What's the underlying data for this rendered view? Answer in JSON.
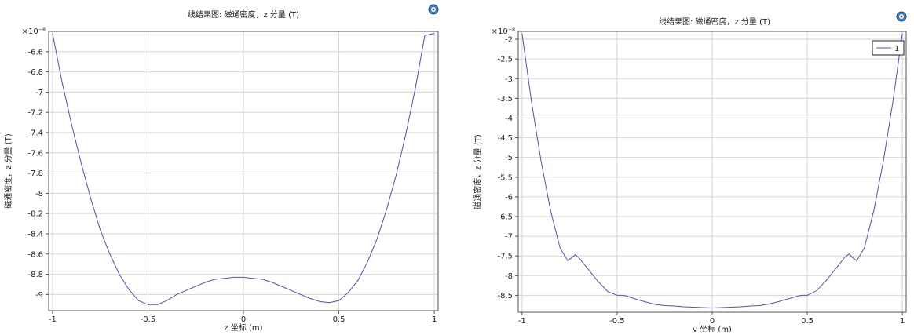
{
  "charts": [
    {
      "id": "left",
      "chart_data": {
        "type": "line",
        "title": "线结果图: 磁通密度，z 分量 (T)",
        "xlabel": "z 坐标 (m)",
        "ylabel": "磁通密度，z 分量 (T)",
        "y_multiplier": "×10⁻⁸",
        "xlim": [
          -1.02,
          1.02
        ],
        "ylim": [
          -9.16,
          -6.4
        ],
        "grid": true,
        "legend": null,
        "x_ticks": [
          -1,
          -0.5,
          0,
          0.5,
          1
        ],
        "x_tick_labels": [
          "-1",
          "-0.5",
          "0",
          "0.5",
          "1"
        ],
        "y_ticks": [
          -6.6,
          -6.8,
          -7,
          -7.2,
          -7.4,
          -7.6,
          -7.8,
          -8,
          -8.2,
          -8.4,
          -8.6,
          -8.8,
          -9
        ],
        "y_tick_labels": [
          "-6.6",
          "-6.8",
          "-7",
          "-7.2",
          "-7.4",
          "-7.6",
          "-7.8",
          "-8",
          "-8.2",
          "-8.4",
          "-8.6",
          "-8.8",
          "-9"
        ],
        "series": [
          {
            "color": "#4f52b8",
            "x": [
              -1,
              -0.95,
              -0.9,
              -0.85,
              -0.8,
              -0.75,
              -0.7,
              -0.65,
              -0.6,
              -0.55,
              -0.5,
              -0.45,
              -0.4,
              -0.35,
              -0.3,
              -0.25,
              -0.2,
              -0.15,
              -0.1,
              -0.05,
              0,
              0.05,
              0.1,
              0.15,
              0.2,
              0.25,
              0.3,
              0.35,
              0.4,
              0.45,
              0.5,
              0.55,
              0.6,
              0.65,
              0.7,
              0.75,
              0.8,
              0.85,
              0.9,
              0.95,
              1
            ],
            "y": [
              -6.42,
              -6.9,
              -7.32,
              -7.7,
              -8.05,
              -8.36,
              -8.6,
              -8.8,
              -8.95,
              -9.06,
              -9.1,
              -9.1,
              -9.06,
              -9.0,
              -8.96,
              -8.92,
              -8.88,
              -8.85,
              -8.84,
              -8.83,
              -8.83,
              -8.84,
              -8.85,
              -8.88,
              -8.92,
              -8.96,
              -9.0,
              -9.04,
              -9.07,
              -9.08,
              -9.06,
              -8.98,
              -8.86,
              -8.68,
              -8.45,
              -8.16,
              -7.82,
              -7.42,
              -6.97,
              -6.44,
              -6.42
            ]
          }
        ]
      }
    },
    {
      "id": "right",
      "chart_data": {
        "type": "line",
        "title": "线结果图: 磁通密度，z 分量 (T)",
        "xlabel": "y 坐标 (m)",
        "ylabel": "磁通密度，z 分量 (T)",
        "y_multiplier": "×10⁻⁸",
        "xlim": [
          -1.02,
          1.02
        ],
        "ylim": [
          -8.93,
          -1.8
        ],
        "grid": true,
        "legend": {
          "position": "top-right",
          "entries": [
            "1"
          ]
        },
        "x_ticks": [
          -1,
          -0.5,
          0,
          0.5,
          1
        ],
        "x_tick_labels": [
          "-1",
          "-0.5",
          "0",
          "0.5",
          "1"
        ],
        "y_ticks": [
          -2,
          -2.5,
          -3,
          -3.5,
          -4,
          -4.5,
          -5,
          -5.5,
          -6,
          -6.5,
          -7,
          -7.5,
          -8,
          -8.5
        ],
        "y_tick_labels": [
          "-2",
          "-2.5",
          "-3",
          "-3.5",
          "-4",
          "-4.5",
          "-5",
          "-5.5",
          "-6",
          "-6.5",
          "-7",
          "-7.5",
          "-8",
          "-8.5"
        ],
        "series": [
          {
            "name": "1",
            "color": "#4f52b8",
            "x": [
              -1,
              -0.95,
              -0.9,
              -0.85,
              -0.8,
              -0.76,
              -0.74,
              -0.72,
              -0.7,
              -0.65,
              -0.6,
              -0.55,
              -0.5,
              -0.47,
              -0.45,
              -0.4,
              -0.35,
              -0.3,
              -0.25,
              -0.2,
              -0.15,
              -0.1,
              -0.05,
              0,
              0.05,
              0.1,
              0.15,
              0.2,
              0.25,
              0.3,
              0.35,
              0.4,
              0.45,
              0.47,
              0.5,
              0.55,
              0.6,
              0.65,
              0.7,
              0.72,
              0.74,
              0.76,
              0.8,
              0.85,
              0.9,
              0.95,
              1
            ],
            "y": [
              -1.85,
              -3.6,
              -5.1,
              -6.35,
              -7.3,
              -7.62,
              -7.55,
              -7.47,
              -7.55,
              -7.85,
              -8.15,
              -8.4,
              -8.5,
              -8.5,
              -8.52,
              -8.6,
              -8.67,
              -8.73,
              -8.76,
              -8.77,
              -8.79,
              -8.8,
              -8.81,
              -8.82,
              -8.81,
              -8.8,
              -8.79,
              -8.77,
              -8.76,
              -8.72,
              -8.66,
              -8.59,
              -8.52,
              -8.5,
              -8.5,
              -8.38,
              -8.12,
              -7.82,
              -7.52,
              -7.45,
              -7.55,
              -7.62,
              -7.3,
              -6.35,
              -5.1,
              -3.6,
              -1.85
            ]
          }
        ]
      }
    }
  ]
}
